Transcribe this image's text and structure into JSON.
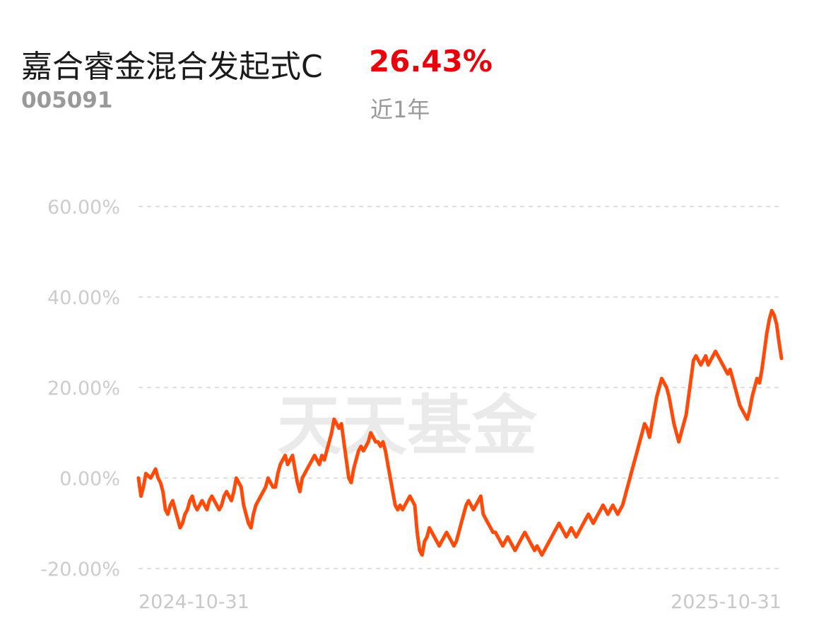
{
  "header": {
    "fund_name": "嘉合睿金混合发起式C",
    "fund_code": "005091",
    "return_value": "26.43%",
    "return_period": "近1年"
  },
  "watermark": "天天基金",
  "colors": {
    "line": "#ff4a0a",
    "return": "#e8000b",
    "grid": "#dedede",
    "tick": "#cccccc"
  },
  "chart_data": {
    "type": "line",
    "title": "",
    "xlabel": "",
    "ylabel": "",
    "ylim": [
      -20,
      60
    ],
    "yticks": [
      "60.00%",
      "40.00%",
      "20.00%",
      "0.00%",
      "-20.00%"
    ],
    "ytick_values": [
      60,
      40,
      20,
      0,
      -20
    ],
    "xtick_labels": [
      "2024-10-31",
      "2025-10-31"
    ],
    "x_range": [
      "2024-10-31",
      "2025-10-31"
    ],
    "grid": true,
    "series": [
      {
        "name": "",
        "values": [
          0,
          -4,
          -2,
          1,
          0.5,
          0,
          1,
          2,
          0,
          -1,
          -3,
          -7,
          -8,
          -6,
          -5,
          -7,
          -9,
          -11,
          -10,
          -8,
          -7,
          -5,
          -4,
          -6,
          -7,
          -6,
          -5,
          -6,
          -7,
          -5,
          -4,
          -5,
          -6,
          -7,
          -6,
          -4,
          -3,
          -4,
          -5,
          -3,
          0,
          -1,
          -2,
          -6,
          -8,
          -10,
          -11,
          -8,
          -6,
          -5,
          -4,
          -3,
          -2,
          0,
          -1,
          -2,
          -2,
          1,
          3,
          4,
          5,
          3,
          4,
          5,
          2,
          -1,
          -3,
          0,
          1,
          2,
          3,
          4,
          5,
          4,
          3,
          5,
          4,
          6,
          8,
          10,
          13,
          12,
          11,
          12,
          8,
          4,
          0,
          -1,
          2,
          4,
          6,
          7,
          6,
          7,
          8,
          10,
          9,
          8,
          8,
          7,
          8,
          6,
          3,
          0,
          -3,
          -6,
          -7,
          -6,
          -7,
          -6,
          -5,
          -4,
          -5,
          -6,
          -12,
          -16,
          -17,
          -14,
          -13,
          -11,
          -12,
          -13,
          -14,
          -15,
          -14,
          -13,
          -12,
          -13,
          -14,
          -15,
          -14,
          -12,
          -10,
          -8,
          -6,
          -5,
          -6,
          -7,
          -6,
          -5,
          -4,
          -8,
          -9,
          -10,
          -11,
          -12,
          -12,
          -13,
          -14,
          -15,
          -14,
          -13,
          -14,
          -15,
          -16,
          -15,
          -14,
          -13,
          -12,
          -13,
          -14,
          -15,
          -16,
          -15,
          -16,
          -17,
          -16,
          -15,
          -14,
          -13,
          -12,
          -11,
          -10,
          -11,
          -12,
          -13,
          -12,
          -11,
          -12,
          -13,
          -12,
          -11,
          -10,
          -9,
          -8,
          -9,
          -10,
          -9,
          -8,
          -7,
          -6,
          -7,
          -8,
          -7,
          -6,
          -7,
          -8,
          -7,
          -6,
          -4,
          -2,
          0,
          2,
          4,
          6,
          8,
          10,
          12,
          11,
          9,
          12,
          15,
          18,
          20,
          22,
          21,
          20,
          18,
          15,
          12,
          10,
          8,
          10,
          12,
          14,
          18,
          22,
          26,
          27,
          26,
          25,
          26,
          27,
          25,
          26,
          27,
          28,
          27,
          26,
          25,
          24,
          23,
          24,
          22,
          20,
          18,
          16,
          15,
          14,
          13,
          15,
          18,
          20,
          22,
          21,
          24,
          28,
          32,
          35,
          37,
          36,
          34,
          30,
          26.43
        ]
      }
    ]
  }
}
